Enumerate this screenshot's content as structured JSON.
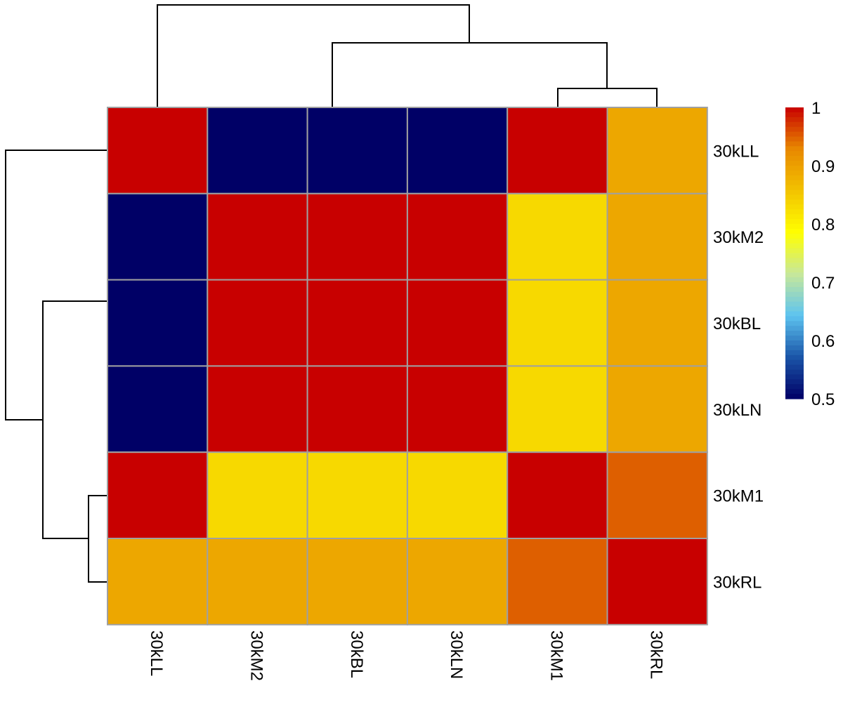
{
  "chart_data": {
    "type": "heatmap",
    "rows": [
      "30kLL",
      "30kM2",
      "30kBL",
      "30kLN",
      "30kM1",
      "30kRL"
    ],
    "columns": [
      "30kLL",
      "30kM2",
      "30kBL",
      "30kLN",
      "30kM1",
      "30kRL"
    ],
    "values": [
      [
        1.0,
        0.5,
        0.5,
        0.5,
        1.0,
        0.89
      ],
      [
        0.5,
        1.0,
        1.0,
        1.0,
        0.83,
        0.89
      ],
      [
        0.5,
        1.0,
        1.0,
        1.0,
        0.83,
        0.89
      ],
      [
        0.5,
        1.0,
        1.0,
        1.0,
        0.83,
        0.89
      ],
      [
        1.0,
        0.83,
        0.83,
        0.83,
        1.0,
        0.95
      ],
      [
        0.89,
        0.89,
        0.89,
        0.89,
        0.95,
        1.0
      ]
    ],
    "color_scale": {
      "min": 0.5,
      "max": 1.0,
      "ticks": [
        "1",
        "0.9",
        "0.8",
        "0.7",
        "0.6",
        "0.5"
      ],
      "stops": [
        "#000066",
        "#1A55A8",
        "#5EC4F0",
        "#C8E89A",
        "#FFFF00",
        "#F2C200",
        "#E88800",
        "#C80000"
      ]
    },
    "cell_border_color": "#A0A0A0",
    "legend": "right",
    "row_dendrogram": "left",
    "column_dendrogram": "top"
  }
}
